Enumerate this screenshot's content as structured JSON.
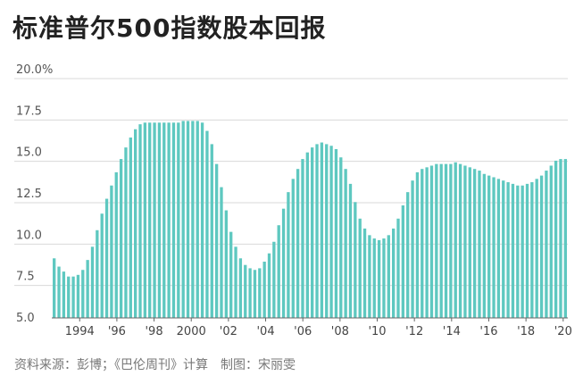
{
  "title": "标准普尔500指数股本回报",
  "source": "资料来源：彭博；《巴伦周刊》计算　制图：宋丽雯",
  "colors": {
    "bar": "#5ec8c0",
    "grid": "#d9d9d9",
    "axis": "#666666"
  },
  "chart_data": {
    "type": "bar",
    "title": "标准普尔500指数股本回报",
    "ylim": [
      5.0,
      20.0
    ],
    "yticks": [
      "5.0",
      "7.5",
      "10.0",
      "12.5",
      "15.0",
      "17.5",
      "20.0%"
    ],
    "ytick_values": [
      5.0,
      7.5,
      10.0,
      12.5,
      15.0,
      17.5,
      20.0
    ],
    "xtick_labels": [
      "1994",
      "'96",
      "'98",
      "2000",
      "'02",
      "'04",
      "'06",
      "'08",
      "'10",
      "'12",
      "'14",
      "'16",
      "'18",
      "'20"
    ],
    "x_start": 1993.0,
    "x_end": 2020.75,
    "grid": true,
    "series": [
      {
        "values": [
          8.6,
          8.1,
          7.8,
          7.5,
          7.5,
          7.6,
          7.9,
          8.5,
          9.3,
          10.3,
          11.3,
          12.2,
          13.0,
          13.8,
          14.6,
          15.3,
          15.9,
          16.4,
          16.7,
          16.8,
          16.8,
          16.8,
          16.8,
          16.8,
          16.8,
          16.8,
          16.8,
          16.9,
          16.9,
          16.9,
          16.9,
          16.8,
          16.3,
          15.5,
          14.3,
          12.9,
          11.5,
          10.2,
          9.3,
          8.6,
          8.2,
          8.0,
          7.9,
          8.0,
          8.4,
          8.9,
          9.6,
          10.6,
          11.6,
          12.6,
          13.4,
          14.0,
          14.6,
          15.0,
          15.3,
          15.5,
          15.6,
          15.5,
          15.4,
          15.2,
          14.7,
          14.0,
          13.1,
          12.0,
          11.0,
          10.4,
          10.0,
          9.8,
          9.7,
          9.8,
          10.0,
          10.4,
          11.0,
          11.8,
          12.6,
          13.3,
          13.8,
          14.0,
          14.1,
          14.2,
          14.3,
          14.3,
          14.3,
          14.3,
          14.4,
          14.3,
          14.2,
          14.1,
          14.0,
          13.9,
          13.7,
          13.6,
          13.5,
          13.4,
          13.3,
          13.2,
          13.1,
          13.0,
          13.0,
          13.1,
          13.2,
          13.4,
          13.6,
          13.9,
          14.2,
          14.5,
          14.6,
          14.6
        ]
      }
    ]
  }
}
